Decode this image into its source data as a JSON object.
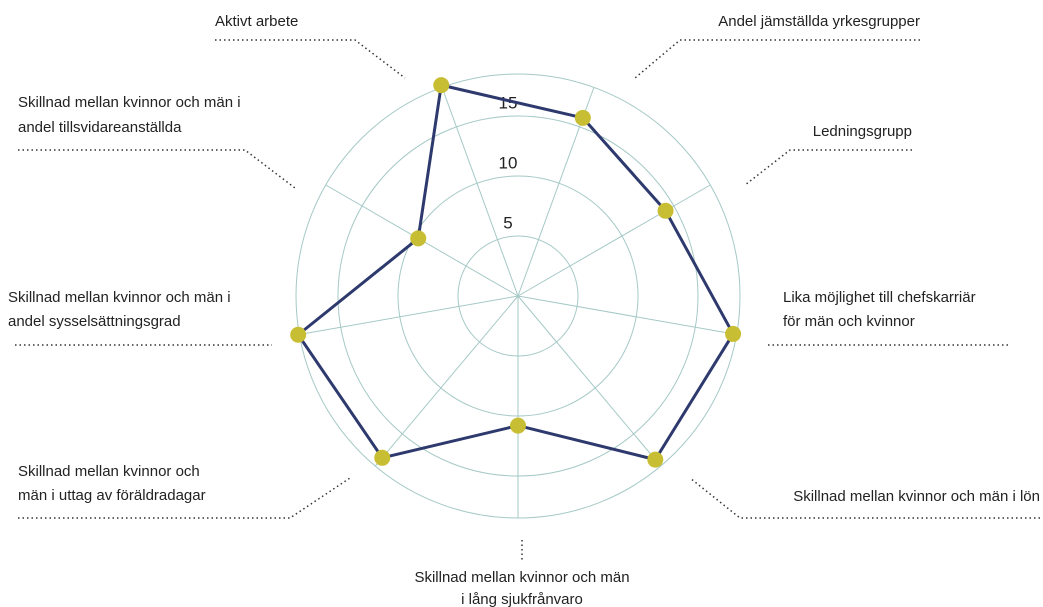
{
  "chart_data": {
    "type": "radar",
    "categories": [
      [
        "Aktivt arbete"
      ],
      [
        "Andel jämställda yrkesgrupper"
      ],
      [
        "Ledningsgrupp"
      ],
      [
        "Lika möjlighet till chefskarriär",
        "för män och kvinnor"
      ],
      [
        "Skillnad mellan kvinnor och män i lön"
      ],
      [
        "Skillnad mellan kvinnor och män",
        "i lång sjukfrånvaro"
      ],
      [
        "Skillnad mellan kvinnor och",
        "män i uttag av föräldradagar"
      ],
      [
        "Skillnad mellan kvinnor och män i",
        "andel sysselsättningsgrad"
      ],
      [
        "Skillnad mellan kvinnor och män i",
        "andel tillsvidareanställda"
      ]
    ],
    "values": [
      18.7,
      15.8,
      14.2,
      18.2,
      17.8,
      10.8,
      17.6,
      18.6,
      9.6
    ],
    "color": "#2e3a6e",
    "marker_color": "#c8be33",
    "grid_color": "#a5c9c6",
    "rlim": [
      0,
      18.5
    ],
    "rticks": [
      5,
      10,
      15
    ],
    "grid": true
  }
}
